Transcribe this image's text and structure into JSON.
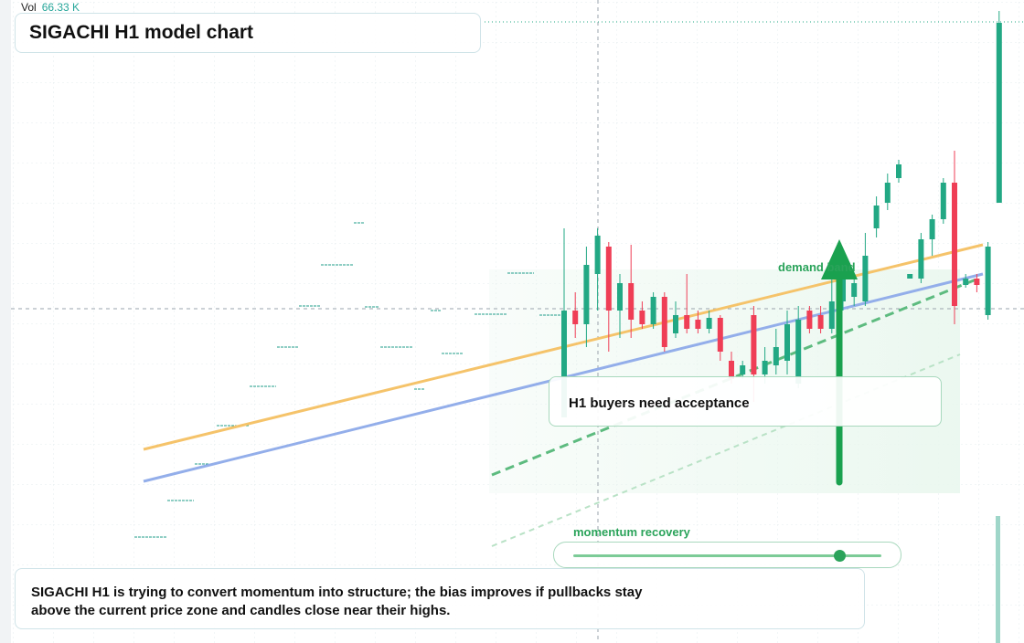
{
  "chart_data": {
    "type": "candlestick",
    "title": "SIGACHI H1 model chart",
    "volume_label": "Vol",
    "volume_value": "66.33 K",
    "annotations": {
      "zone": "demand band",
      "note": "H1 buyers need acceptance",
      "slider": "momentum recovery",
      "caption": "SIGACHI H1 is trying to convert momentum into structure; the bias improves if pullbacks stay above the current price zone and candles close near their highs."
    },
    "up_color": "#22a884",
    "down_color": "#ef3e56",
    "ylim": [
      100,
      170
    ],
    "open": [
      124.3,
      136.0,
      134.5,
      140.0,
      143.0,
      136.0,
      139.0,
      136.0,
      134.5,
      137.5,
      133.5,
      135.5,
      135.0,
      134.0,
      135.2,
      130.5,
      129.0,
      135.5,
      129.0,
      130.0,
      130.5,
      128.0,
      136.0,
      135.5,
      134.0,
      137.0,
      137.5,
      137.0,
      145.0,
      147.8,
      150.5,
      139.5,
      139.5,
      143.8,
      146.0,
      150.0,
      138.8,
      139.5,
      135.5,
      147.8
    ],
    "high": [
      145.0,
      138.0,
      143.0,
      145.0,
      143.5,
      140.0,
      143.2,
      137.0,
      138.0,
      138.0,
      137.0,
      140.0,
      136.0,
      136.0,
      135.5,
      131.5,
      130.5,
      136.5,
      132.0,
      134.0,
      136.0,
      136.5,
      136.5,
      136.5,
      140.0,
      142.0,
      140.0,
      144.5,
      148.5,
      151.0,
      152.5,
      140.0,
      144.5,
      146.5,
      150.5,
      153.5,
      140.0,
      140.0,
      143.5,
      168.8
    ],
    "low": [
      124.3,
      133.0,
      132.0,
      136.0,
      131.5,
      133.0,
      133.0,
      134.0,
      134.0,
      131.5,
      133.0,
      133.5,
      133.5,
      133.5,
      130.5,
      128.0,
      128.5,
      126.0,
      128.0,
      129.0,
      129.0,
      127.5,
      133.5,
      133.5,
      133.5,
      136.0,
      136.5,
      136.5,
      144.0,
      147.0,
      150.0,
      139.5,
      139.0,
      142.0,
      145.5,
      134.5,
      138.5,
      138.0,
      135.0,
      147.8
    ],
    "close": [
      136.0,
      134.5,
      141.0,
      144.2,
      136.0,
      139.0,
      135.0,
      134.5,
      137.5,
      132.0,
      135.5,
      134.0,
      134.0,
      135.2,
      131.5,
      128.5,
      130.0,
      129.0,
      130.5,
      132.0,
      134.5,
      135.0,
      134.0,
      134.0,
      137.0,
      140.0,
      139.0,
      142.0,
      147.5,
      150.0,
      152.0,
      140.0,
      143.8,
      146.0,
      150.0,
      136.5,
      139.5,
      138.8,
      143.0,
      167.5
    ]
  }
}
